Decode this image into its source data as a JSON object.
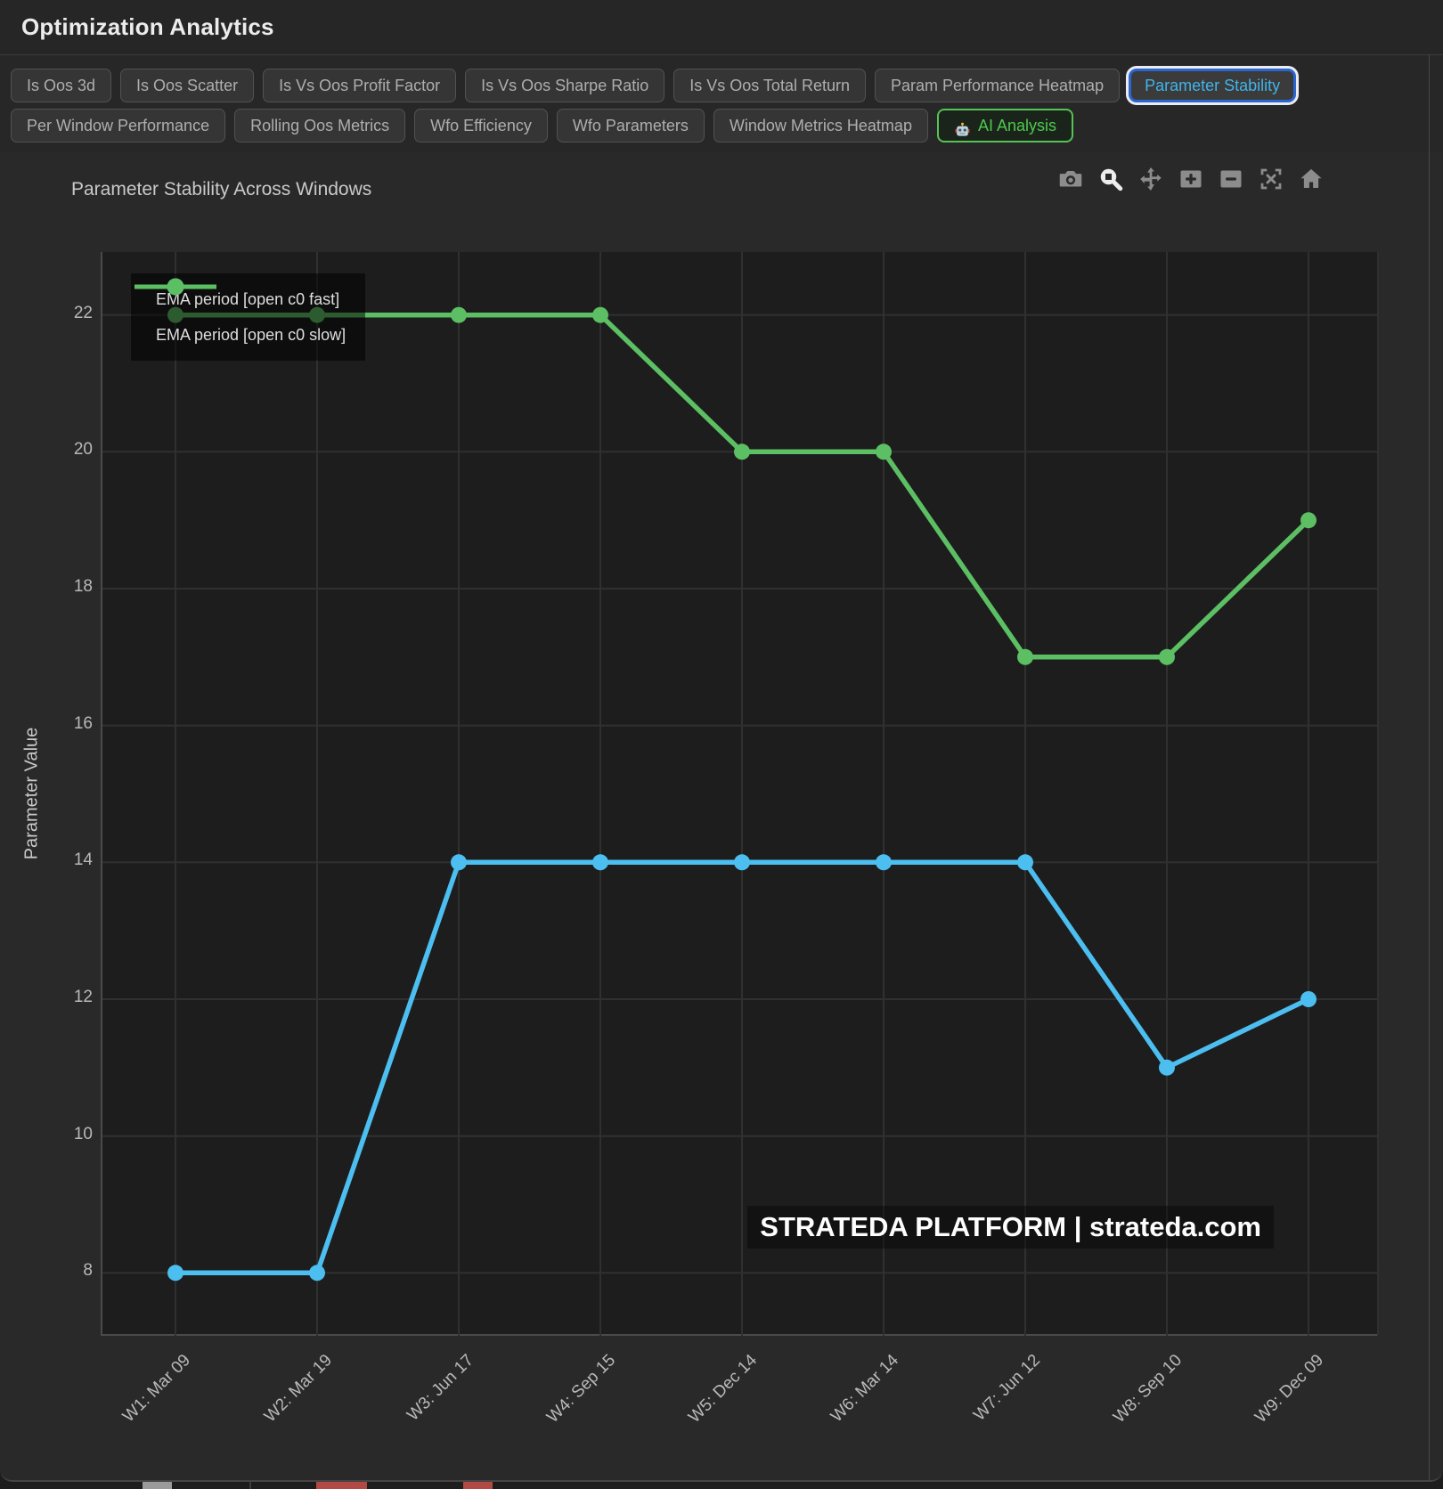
{
  "header": {
    "title": "Optimization Analytics"
  },
  "tab_rows": [
    [
      {
        "label": "Is Oos 3d"
      },
      {
        "label": "Is Oos Scatter"
      },
      {
        "label": "Is Vs Oos Profit Factor"
      },
      {
        "label": "Is Vs Oos Sharpe Ratio"
      },
      {
        "label": "Is Vs Oos Total Return"
      },
      {
        "label": "Param Performance Heatmap"
      },
      {
        "label": "Parameter Stability",
        "active": true
      }
    ],
    [
      {
        "label": "Per Window Performance"
      },
      {
        "label": "Rolling Oos Metrics"
      },
      {
        "label": "Wfo Efficiency"
      },
      {
        "label": "Wfo Parameters"
      },
      {
        "label": "Window Metrics Heatmap"
      },
      {
        "label": "AI Analysis",
        "variant": "ai",
        "icon": "robot-icon"
      }
    ]
  ],
  "toolbar": {
    "icons": [
      {
        "name": "camera",
        "active": false
      },
      {
        "name": "zoom-box",
        "active": true
      },
      {
        "name": "pan",
        "active": false
      },
      {
        "name": "zoom-in",
        "active": false
      },
      {
        "name": "zoom-out",
        "active": false
      },
      {
        "name": "autoscale",
        "active": false
      },
      {
        "name": "home",
        "active": false
      }
    ]
  },
  "colors": {
    "active_tab_text": "#3fb4ea",
    "active_tab_border": "#2a66cf",
    "ai_green": "#4dc94d",
    "series_fast_blue": "#4cbef0",
    "series_slow_green": "#5cbf63"
  },
  "chart_data": {
    "type": "line",
    "title": "Parameter Stability Across Windows",
    "xlabel": "",
    "ylabel": "Parameter Value",
    "categories": [
      "W1: Mar 09",
      "W2: Mar 19",
      "W3: Jun 17",
      "W4: Sep 15",
      "W5: Dec 14",
      "W6: Mar 14",
      "W7: Jun 12",
      "W8: Sep 10",
      "W9: Dec 09"
    ],
    "series": [
      {
        "name": "EMA period [open c0 fast]",
        "color": "#4cbef0",
        "values": [
          8,
          8,
          14,
          14,
          14,
          14,
          14,
          11,
          12
        ]
      },
      {
        "name": "EMA period [open c0 slow]",
        "color": "#5cbf63",
        "values": [
          22,
          22,
          22,
          22,
          20,
          20,
          17,
          17,
          19
        ]
      }
    ],
    "yticks": [
      8,
      10,
      12,
      14,
      16,
      18,
      20,
      22
    ],
    "ylim": [
      7.08,
      22.92
    ],
    "grid": true,
    "legend_position": "top-left",
    "watermark": "STRATEDA PLATFORM | strateda.com"
  }
}
